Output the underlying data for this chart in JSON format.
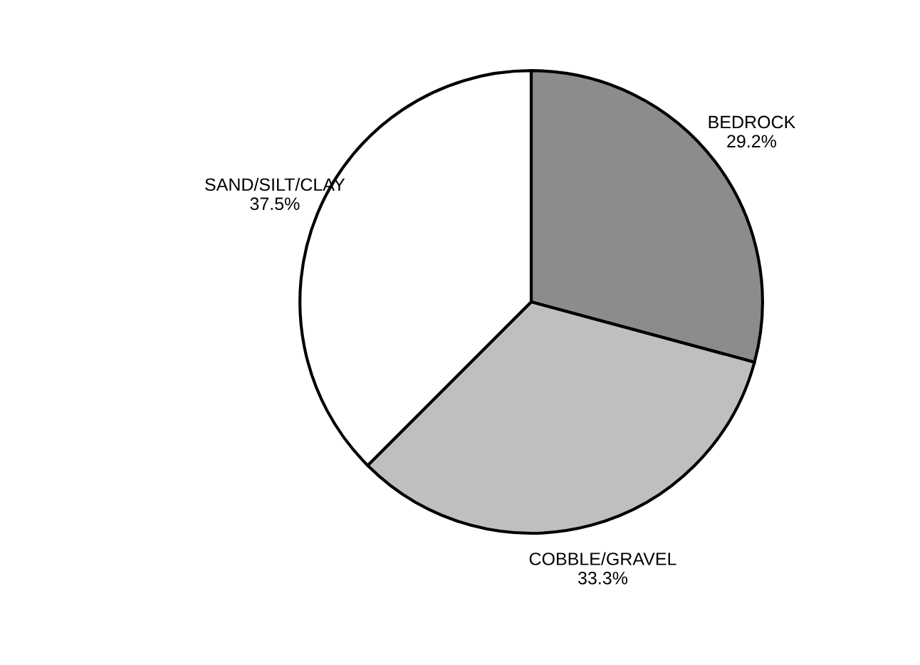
{
  "chart_data": {
    "type": "pie",
    "categories": [
      "BEDROCK",
      "COBBLE/GRAVEL",
      "SAND/SILT/CLAY"
    ],
    "values": [
      29.2,
      33.3,
      37.5
    ],
    "colors": [
      "#8c8c8c",
      "#bfbfbf",
      "#ffffff"
    ],
    "value_labels": [
      "29.2%",
      "33.3%",
      "37.5%"
    ]
  }
}
